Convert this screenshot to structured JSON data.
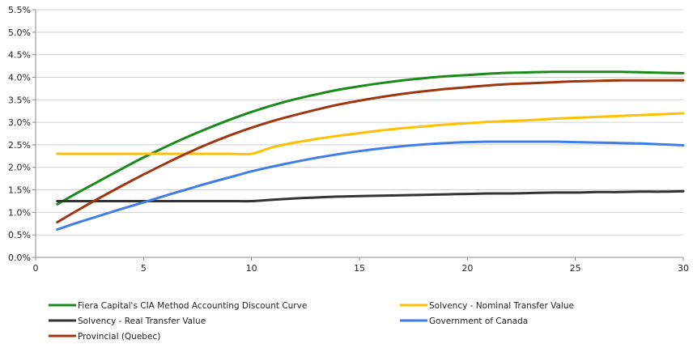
{
  "chart_data": {
    "type": "line",
    "title": "",
    "xlabel": "",
    "ylabel": "",
    "xlim": [
      0,
      30
    ],
    "ylim": [
      0,
      5.5
    ],
    "x_ticks": [
      0,
      5,
      10,
      15,
      20,
      25,
      30
    ],
    "y_ticks": [
      0,
      0.5,
      1.0,
      1.5,
      2.0,
      2.5,
      3.0,
      3.5,
      4.0,
      4.5,
      5.0,
      5.5
    ],
    "y_tick_labels": [
      "0.0%",
      "0.5%",
      "1.0%",
      "1.5%",
      "2.0%",
      "2.5%",
      "3.0%",
      "3.5%",
      "4.0%",
      "4.5%",
      "5.0%",
      "5.5%"
    ],
    "grid": "horizontal",
    "legend_position": "bottom",
    "series": [
      {
        "name": "Fiera Capital's CIA Method Accounting Discount Curve",
        "color": "#1a8a1a",
        "x": [
          1,
          2,
          3,
          4,
          5,
          6,
          7,
          8,
          9,
          10,
          11,
          12,
          13,
          14,
          15,
          16,
          17,
          18,
          19,
          20,
          21,
          22,
          23,
          24,
          25,
          26,
          27,
          28,
          29,
          30
        ],
        "y": [
          1.18,
          1.45,
          1.71,
          1.97,
          2.22,
          2.45,
          2.67,
          2.87,
          3.06,
          3.23,
          3.38,
          3.51,
          3.62,
          3.72,
          3.8,
          3.87,
          3.93,
          3.98,
          4.02,
          4.05,
          4.08,
          4.1,
          4.11,
          4.12,
          4.12,
          4.12,
          4.12,
          4.11,
          4.1,
          4.09
        ]
      },
      {
        "name": "Solvency - Nominal Transfer Value",
        "color": "#ffc000",
        "x": [
          1,
          2,
          3,
          4,
          5,
          6,
          7,
          8,
          9,
          10,
          11,
          12,
          13,
          14,
          15,
          16,
          17,
          18,
          19,
          20,
          21,
          22,
          23,
          24,
          25,
          26,
          27,
          28,
          29,
          30
        ],
        "y": [
          2.3,
          2.3,
          2.3,
          2.3,
          2.3,
          2.3,
          2.3,
          2.3,
          2.3,
          2.3,
          2.45,
          2.55,
          2.63,
          2.7,
          2.76,
          2.82,
          2.87,
          2.91,
          2.95,
          2.98,
          3.01,
          3.03,
          3.05,
          3.08,
          3.1,
          3.12,
          3.14,
          3.16,
          3.18,
          3.2
        ]
      },
      {
        "name": "Solvency - Real Transfer Value",
        "color": "#333333",
        "x": [
          1,
          2,
          3,
          4,
          5,
          6,
          7,
          8,
          9,
          10,
          11,
          12,
          13,
          14,
          15,
          16,
          17,
          18,
          19,
          20,
          21,
          22,
          23,
          24,
          25,
          26,
          27,
          28,
          29,
          30
        ],
        "y": [
          1.25,
          1.25,
          1.25,
          1.25,
          1.25,
          1.25,
          1.25,
          1.25,
          1.25,
          1.25,
          1.28,
          1.31,
          1.33,
          1.35,
          1.36,
          1.37,
          1.38,
          1.39,
          1.4,
          1.41,
          1.42,
          1.42,
          1.43,
          1.44,
          1.44,
          1.45,
          1.45,
          1.46,
          1.46,
          1.47
        ]
      },
      {
        "name": "Government of Canada",
        "color": "#3f7ee8",
        "x": [
          1,
          2,
          3,
          4,
          5,
          6,
          7,
          8,
          9,
          10,
          11,
          12,
          13,
          14,
          15,
          16,
          17,
          18,
          19,
          20,
          21,
          22,
          23,
          24,
          25,
          26,
          27,
          28,
          29,
          30
        ],
        "y": [
          0.62,
          0.78,
          0.93,
          1.08,
          1.22,
          1.37,
          1.51,
          1.65,
          1.78,
          1.91,
          2.02,
          2.12,
          2.21,
          2.29,
          2.36,
          2.42,
          2.47,
          2.51,
          2.54,
          2.56,
          2.57,
          2.57,
          2.57,
          2.57,
          2.56,
          2.55,
          2.54,
          2.53,
          2.51,
          2.49
        ]
      },
      {
        "name": "Provincial (Quebec)",
        "color": "#a0360f",
        "x": [
          1,
          2,
          3,
          4,
          5,
          6,
          7,
          8,
          9,
          10,
          11,
          12,
          13,
          14,
          15,
          16,
          17,
          18,
          19,
          20,
          21,
          22,
          23,
          24,
          25,
          26,
          27,
          28,
          29,
          30
        ],
        "y": [
          0.78,
          1.06,
          1.33,
          1.59,
          1.84,
          2.08,
          2.31,
          2.52,
          2.71,
          2.88,
          3.03,
          3.16,
          3.28,
          3.39,
          3.48,
          3.56,
          3.63,
          3.69,
          3.74,
          3.78,
          3.82,
          3.85,
          3.87,
          3.89,
          3.91,
          3.92,
          3.93,
          3.93,
          3.93,
          3.93
        ]
      }
    ]
  }
}
